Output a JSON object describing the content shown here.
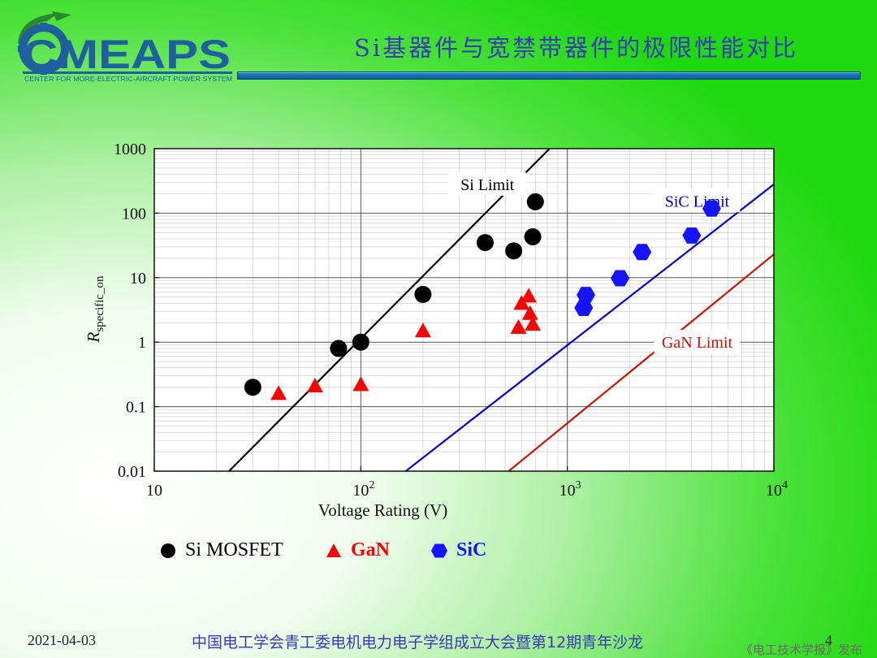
{
  "header": {
    "logo_text": "CMEAPS",
    "logo_subtitle": "CENTER FOR MORE-ELECTRIC-AIRCRAFT POWER SYSTEM",
    "title": "Si基器件与宽禁带器件的极限性能对比",
    "logo_color": "#1f5fa0",
    "logo_accent": "#2a8a2a",
    "title_color": "#3a3ab8"
  },
  "chart_data": {
    "type": "scatter",
    "xscale": "log",
    "yscale": "log",
    "xlim": [
      10,
      10000
    ],
    "ylim": [
      0.01,
      1000
    ],
    "xlabel": "Voltage Rating (V)",
    "ylabel_main": "R",
    "ylabel_sub": "specific_on",
    "x_ticks": [
      {
        "value": 10,
        "base": "10",
        "exp": ""
      },
      {
        "value": 100,
        "base": "10",
        "exp": "2"
      },
      {
        "value": 1000,
        "base": "10",
        "exp": "3"
      },
      {
        "value": 10000,
        "base": "10",
        "exp": "4"
      }
    ],
    "y_ticks": [
      {
        "value": 0.01,
        "label": "0.01"
      },
      {
        "value": 0.1,
        "label": "0.1"
      },
      {
        "value": 1,
        "label": "1"
      },
      {
        "value": 10,
        "label": "10"
      },
      {
        "value": 100,
        "label": "100"
      },
      {
        "value": 1000,
        "label": "1000"
      }
    ],
    "grid": true,
    "series": [
      {
        "name": "Si MOSFET",
        "marker": "circle",
        "color": "#000000",
        "points": [
          [
            30,
            0.2
          ],
          [
            78,
            0.8
          ],
          [
            100,
            1.0
          ],
          [
            200,
            5.5
          ],
          [
            400,
            35
          ],
          [
            550,
            26
          ],
          [
            680,
            43
          ],
          [
            700,
            150
          ]
        ]
      },
      {
        "name": "GaN",
        "marker": "triangle",
        "color": "#ff0000",
        "points": [
          [
            40,
            0.16
          ],
          [
            60,
            0.21
          ],
          [
            100,
            0.22
          ],
          [
            200,
            1.5
          ],
          [
            580,
            1.7
          ],
          [
            600,
            4.0
          ],
          [
            650,
            5.2
          ],
          [
            660,
            2.8
          ],
          [
            680,
            1.9
          ]
        ]
      },
      {
        "name": "SiC",
        "marker": "hexagon",
        "color": "#1414ff",
        "points": [
          [
            1200,
            3.4
          ],
          [
            1230,
            5.4
          ],
          [
            1800,
            9.8
          ],
          [
            2300,
            25
          ],
          [
            4000,
            45
          ],
          [
            5000,
            118
          ]
        ]
      }
    ],
    "limit_lines": [
      {
        "label": "Si Limit",
        "color": "#000000",
        "from": [
          23,
          0.01
        ],
        "to": [
          820,
          1000
        ],
        "label_at": [
          410,
          280
        ],
        "label_color": "#000000"
      },
      {
        "label": "SiC Limit",
        "color": "#0000cc",
        "from": [
          165,
          0.01
        ],
        "to": [
          10000,
          280
        ],
        "label_at": [
          4250,
          155
        ],
        "label_color": "#0000cc"
      },
      {
        "label": "GaN Limit",
        "color": "#cc1100",
        "from": [
          520,
          0.01
        ],
        "to": [
          10000,
          23
        ],
        "label_at": [
          4250,
          1.0
        ],
        "label_color": "#cc1100"
      }
    ]
  },
  "legend": [
    {
      "label": "Si MOSFET",
      "marker": "circle",
      "color": "#000000",
      "text_color": "#000000",
      "bold": false
    },
    {
      "label": "GaN",
      "marker": "triangle",
      "color": "#ff0000",
      "text_color": "#ff0000",
      "bold": true
    },
    {
      "label": "SiC",
      "marker": "hexagon",
      "color": "#1414ff",
      "text_color": "#1414ff",
      "bold": true
    }
  ],
  "footer": {
    "date": "2021-04-03",
    "text": "中国电工学会青工委电机电力电子学组成立大会暨第12期青年沙龙",
    "page": "4",
    "watermark": "《电工技术学报》发布"
  }
}
